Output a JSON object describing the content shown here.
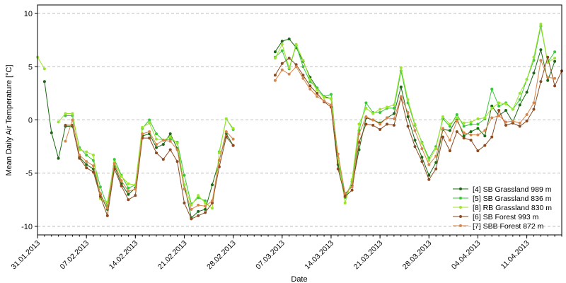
{
  "chart_data": {
    "type": "line",
    "title": "",
    "xlabel": "Date",
    "ylabel": "Mean Daily Air Temperature [°C]",
    "ylim": [
      -10.8,
      10.8
    ],
    "xlim": [
      "2013-01-31",
      "2013-04-16"
    ],
    "yticks": [
      -10,
      -5,
      0,
      5,
      10
    ],
    "xticks": [
      "31.01.2013",
      "07.02.2013",
      "14.02.2013",
      "21.02.2013",
      "28.02.2013",
      "07.03.2013",
      "14.03.2013",
      "21.03.2013",
      "28.03.2013",
      "04.04.2013",
      "11.04.2013"
    ],
    "grid": "horizontal dashed",
    "legend": "bottom-right",
    "start_date": "2013-01-31",
    "series": [
      {
        "name": "[4] SB Grassland 989 m",
        "color": "#1a6a12",
        "values": [
          null,
          3.6,
          -1.2,
          -3.6,
          -0.6,
          -0.6,
          -3.5,
          -4.2,
          -4.6,
          -7.0,
          -8.4,
          -4.3,
          -6.0,
          -7.0,
          -6.4,
          -1.5,
          -1.3,
          -2.6,
          -2.3,
          -1.3,
          -2.7,
          -6.1,
          -9.2,
          -8.6,
          -8.4,
          -6.1,
          -3.8,
          -1.3,
          -2.4,
          null,
          null,
          null,
          null,
          null,
          6.4,
          7.4,
          7.6,
          6.8,
          5.5,
          4.0,
          3.0,
          2.2,
          2.0,
          -4.2,
          -7.0,
          -6.2,
          -2.8,
          0.2,
          0.0,
          -0.3,
          0.2,
          0.6,
          3.1,
          0.3,
          -1.9,
          -3.5,
          -5.2,
          -4.0,
          -0.9,
          -1.0,
          0.1,
          -1.5,
          -1.1,
          -0.8,
          -1.5,
          1.3,
          0.4,
          0.9,
          -0.2,
          1.4,
          2.6,
          4.4,
          6.6,
          3.7,
          5.5
        ]
      },
      {
        "name": "[5] SB Grassland 836 m",
        "color": "#3cc63c",
        "values": [
          null,
          null,
          null,
          null,
          0.4,
          0.4,
          -2.6,
          -3.3,
          -3.8,
          -6.3,
          -8.1,
          -3.7,
          -5.2,
          -6.4,
          -6.1,
          -0.8,
          0.0,
          -1.3,
          -1.9,
          -1.8,
          -2.1,
          -5.2,
          -7.9,
          -7.3,
          -7.6,
          null,
          -3.0,
          0.1,
          -0.9,
          null,
          null,
          null,
          null,
          null,
          5.9,
          6.5,
          4.8,
          7.0,
          5.0,
          3.6,
          3.0,
          2.2,
          2.4,
          -3.6,
          -7.3,
          -5.8,
          -1.0,
          1.6,
          0.7,
          0.7,
          1.1,
          1.1,
          4.6,
          1.6,
          -0.5,
          -2.1,
          -3.6,
          -2.5,
          0.1,
          -0.6,
          0.5,
          -0.6,
          -0.4,
          -0.4,
          0.1,
          2.9,
          1.3,
          1.6,
          1.0,
          1.9,
          3.8,
          5.6,
          8.8,
          5.4,
          6.4
        ]
      },
      {
        "name": "[8] RB Grassland 830 m",
        "color": "#9be628",
        "values": [
          5.9,
          4.8,
          null,
          -0.2,
          0.6,
          0.6,
          -2.8,
          -3.0,
          -3.3,
          -7.4,
          -7.7,
          -4.0,
          -5.3,
          -6.0,
          -6.1,
          -0.7,
          -0.3,
          -1.8,
          -1.9,
          -1.6,
          -2.2,
          -6.1,
          -8.0,
          -7.1,
          -7.8,
          -8.3,
          -3.1,
          0.1,
          -0.8,
          null,
          null,
          null,
          null,
          null,
          5.8,
          7.1,
          4.9,
          7.1,
          5.6,
          3.8,
          2.8,
          2.1,
          2.0,
          -3.6,
          -7.8,
          -5.6,
          -0.4,
          1.1,
          0.6,
          1.0,
          1.2,
          1.4,
          4.9,
          1.9,
          -0.4,
          -2.2,
          -3.8,
          -2.7,
          0.3,
          -0.4,
          0.2,
          -0.3,
          -0.2,
          0.1,
          0.2,
          1.1,
          1.6,
          1.5,
          1.0,
          2.5,
          3.8,
          5.9,
          9.0,
          5.4,
          5.8
        ]
      },
      {
        "name": "[6] SB Forest 993 m",
        "color": "#8c4a20",
        "values": [
          null,
          null,
          null,
          null,
          -0.5,
          -0.5,
          -3.6,
          -4.5,
          -4.9,
          -7.2,
          -9.0,
          -4.6,
          -6.2,
          -7.5,
          -7.1,
          -1.7,
          -1.7,
          -3.1,
          -3.7,
          -2.8,
          -3.9,
          -7.8,
          -9.3,
          -9.0,
          -8.7,
          -7.8,
          -4.4,
          -1.6,
          -2.4,
          null,
          null,
          null,
          null,
          null,
          4.2,
          5.3,
          5.8,
          5.2,
          4.2,
          3.2,
          2.5,
          1.7,
          1.2,
          -4.6,
          -7.2,
          -6.6,
          -2.1,
          -0.4,
          -0.5,
          -0.9,
          -0.4,
          -0.5,
          2.1,
          -0.6,
          -2.5,
          -3.9,
          -5.6,
          -4.6,
          -1.6,
          -2.9,
          -1.1,
          -1.7,
          -1.9,
          -2.9,
          -2.4,
          -1.6,
          0.9,
          -0.5,
          -0.3,
          -0.6,
          -0.1,
          1.0,
          3.6,
          5.9,
          3.2,
          4.6
        ]
      },
      {
        "name": "[7] SBB Forest 872 m",
        "color": "#d9854a",
        "values": [
          null,
          null,
          null,
          null,
          -2.0,
          0.0,
          -3.3,
          -3.9,
          -4.3,
          -6.9,
          -8.3,
          -4.1,
          -5.7,
          -6.7,
          -6.5,
          -1.3,
          -1.1,
          -2.3,
          -1.9,
          -2.0,
          -2.8,
          -6.5,
          -8.4,
          -8.0,
          -8.1,
          -7.6,
          -3.8,
          -1.1,
          -1.8,
          null,
          null,
          null,
          null,
          null,
          3.7,
          4.7,
          4.3,
          5.0,
          3.9,
          2.9,
          2.2,
          1.8,
          1.4,
          -3.2,
          -6.9,
          -6.3,
          -1.3,
          0.3,
          0.0,
          -0.4,
          0.2,
          0.1,
          2.2,
          0.7,
          -1.0,
          -2.7,
          -4.2,
          -3.4,
          -0.8,
          -1.9,
          -0.1,
          -1.2,
          -1.4,
          -1.4,
          -1.0,
          0.2,
          0.4,
          -0.2,
          -0.1,
          -0.3,
          0.5,
          1.6,
          5.6,
          4.0,
          3.9
        ]
      }
    ]
  }
}
